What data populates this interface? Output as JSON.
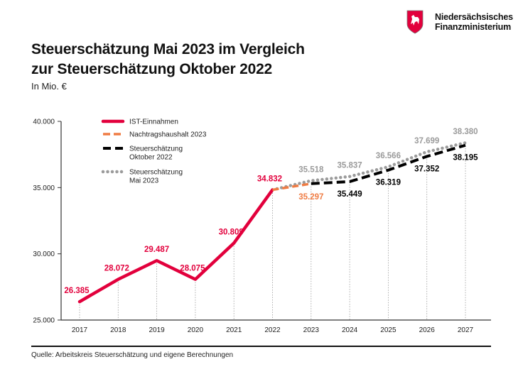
{
  "header": {
    "org_line1": "Niedersächsisches",
    "org_line2": "Finanzministerium",
    "logo_icon": "lower-saxony-horse-shield",
    "title_line1": "Steuerschätzung Mai 2023 im Vergleich",
    "title_line2": "zur Steuerschätzung Oktober 2022",
    "subtitle": "In Mio. €"
  },
  "footer": {
    "source": "Quelle: Arbeitskreis Steuerschätzung und eigene Berechnungen"
  },
  "colors": {
    "ist": "#e2003c",
    "nachtrag": "#ef7c44",
    "oktober": "#000000",
    "mai": "#9b9b9b"
  },
  "chart_data": {
    "type": "line",
    "title": "Steuerschätzung Mai 2023 im Vergleich zur Steuerschätzung Oktober 2022",
    "ylabel": "In Mio. €",
    "xlabel": "",
    "ylim": [
      25000,
      40000
    ],
    "yticks": [
      25000,
      30000,
      35000,
      40000
    ],
    "ytick_labels": [
      "25.000",
      "30.000",
      "35.000",
      "40.000"
    ],
    "x": [
      "2017",
      "2018",
      "2019",
      "2020",
      "2021",
      "2022",
      "2023",
      "2024",
      "2025",
      "2026",
      "2027"
    ],
    "legend": [
      {
        "name": "IST-Einnahmen",
        "lines": [
          "IST-Einnahmen"
        ]
      },
      {
        "name": "Nachtragshaushalt 2023",
        "lines": [
          "Nachtragshaushalt 2023"
        ]
      },
      {
        "name": "Steuerschätzung Oktober 2022",
        "lines": [
          "Steuerschätzung",
          "Oktober 2022"
        ]
      },
      {
        "name": "Steuerschätzung Mai 2023",
        "lines": [
          "Steuerschätzung",
          "Mai 2023"
        ]
      }
    ],
    "legend_position": "top-left",
    "series": [
      {
        "name": "IST-Einnahmen",
        "style": "solid",
        "x": [
          "2017",
          "2018",
          "2019",
          "2020",
          "2021",
          "2022"
        ],
        "values": [
          26385,
          28072,
          29487,
          28075,
          30809,
          34832
        ],
        "labels": [
          "26.385",
          "28.072",
          "29.487",
          "28.075",
          "30.809",
          "34.832"
        ]
      },
      {
        "name": "Nachtragshaushalt 2023",
        "style": "dashed",
        "x": [
          "2022",
          "2023"
        ],
        "values": [
          34832,
          35297
        ],
        "labels": [
          null,
          "35.297"
        ]
      },
      {
        "name": "Steuerschätzung Oktober 2022",
        "style": "dashed",
        "x": [
          "2023",
          "2024",
          "2025",
          "2026",
          "2027"
        ],
        "values": [
          35297,
          35449,
          36319,
          37352,
          38195
        ],
        "labels": [
          null,
          "35.449",
          "36.319",
          "37.352",
          "38.195"
        ]
      },
      {
        "name": "Steuerschätzung Mai 2023",
        "style": "dotted",
        "x": [
          "2022",
          "2023",
          "2024",
          "2025",
          "2026",
          "2027"
        ],
        "values": [
          34832,
          35518,
          35837,
          36566,
          37699,
          38380
        ],
        "labels": [
          null,
          "35.518",
          "35.837",
          "36.566",
          "37.699",
          "38.380"
        ]
      }
    ]
  }
}
